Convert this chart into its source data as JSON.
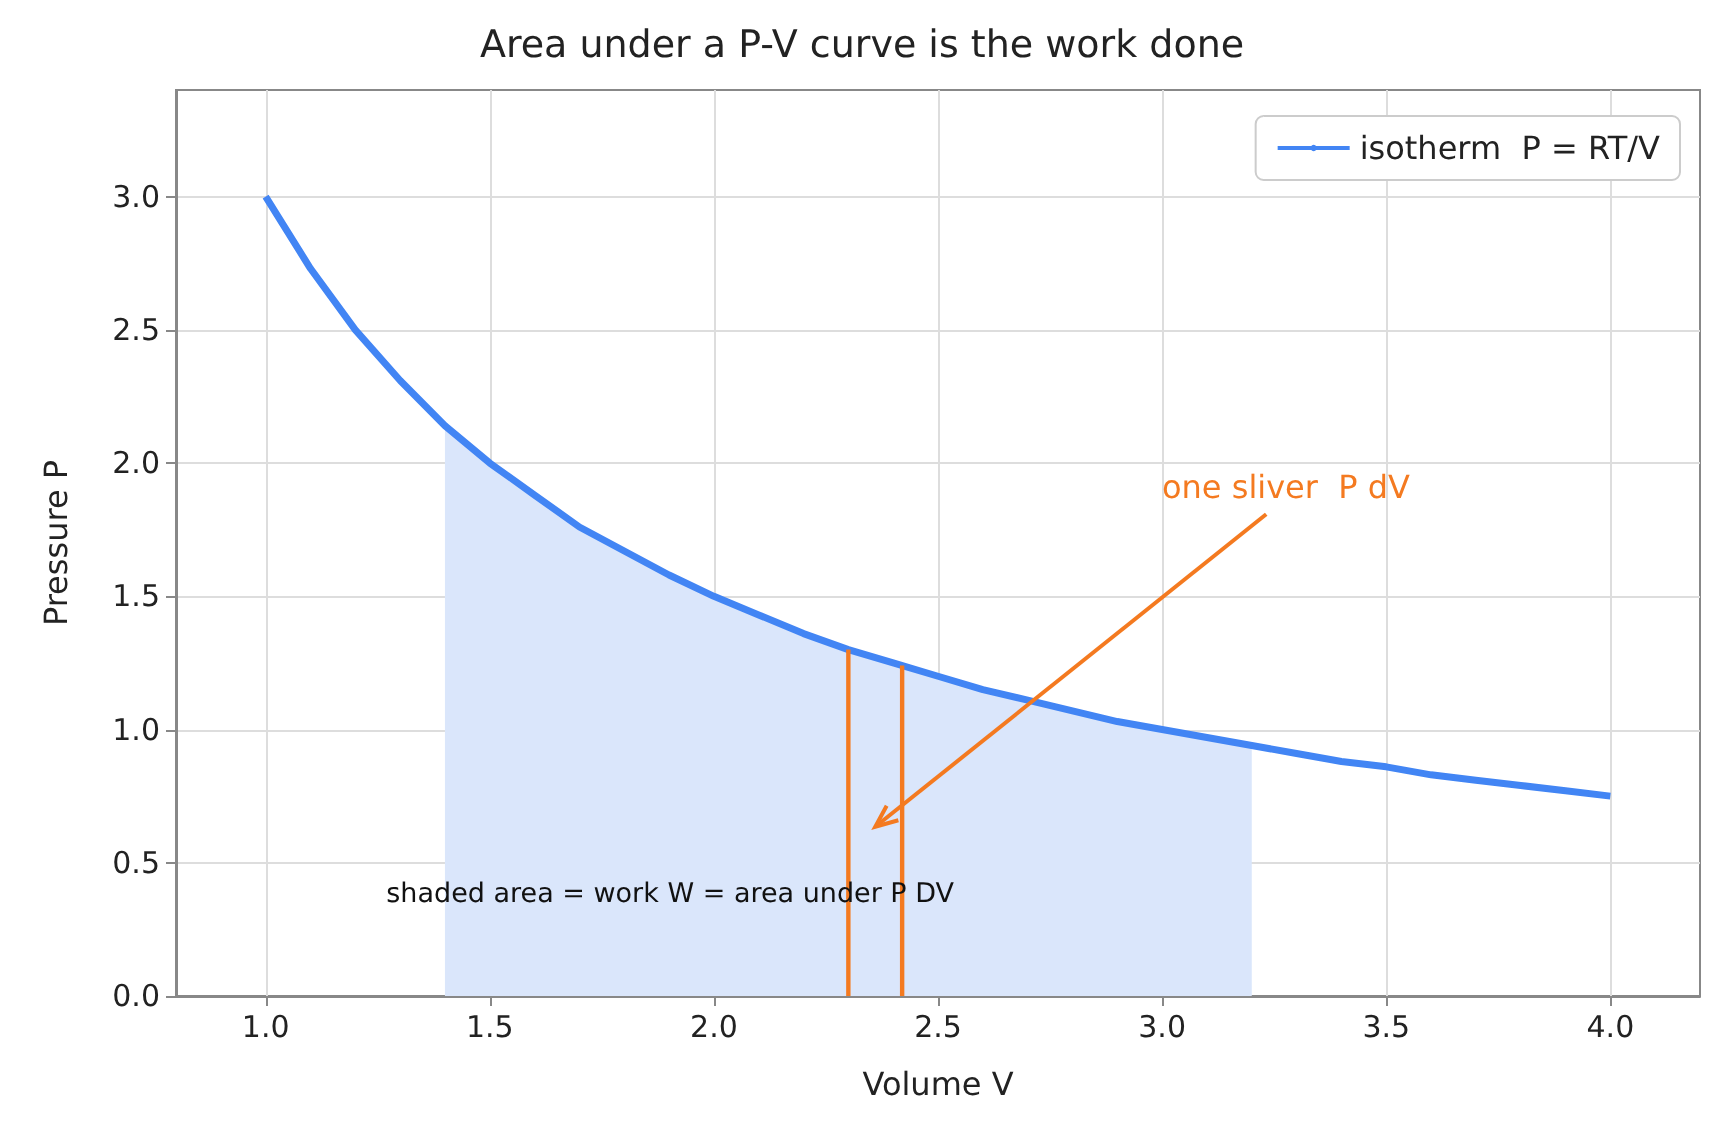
{
  "chart_data": {
    "type": "line",
    "title": "Area under a P-V curve is the work done",
    "xlabel": "Volume V",
    "ylabel": "Pressure P",
    "series": [
      {
        "name": "isotherm  P = RT/V",
        "color": "#4285f4",
        "x": [
          1,
          1.1,
          1.2,
          1.3,
          1.4,
          1.5,
          1.6,
          1.7,
          1.8,
          1.9,
          2,
          2.1,
          2.2,
          2.3,
          2.4,
          2.5,
          2.6,
          2.7,
          2.8,
          2.9,
          3,
          3.1,
          3.2,
          3.3,
          3.4,
          3.5,
          3.6,
          3.7,
          3.8,
          3.9,
          4
        ],
        "values": [
          3.0,
          2.73,
          2.5,
          2.31,
          2.14,
          2.0,
          1.88,
          1.76,
          1.67,
          1.58,
          1.5,
          1.43,
          1.36,
          1.3,
          1.25,
          1.2,
          1.15,
          1.11,
          1.07,
          1.03,
          1.0,
          0.97,
          0.94,
          0.91,
          0.88,
          0.86,
          0.83,
          0.81,
          0.79,
          0.77,
          0.75
        ]
      },
      {
        "type": "area",
        "color": "#dae6fb",
        "x": [
          1.4,
          1.5,
          1.6,
          1.7,
          1.8,
          1.9,
          2,
          2.1,
          2.2,
          2.3,
          2.4,
          2.5,
          2.6,
          2.7,
          2.8,
          2.9,
          3,
          3.1,
          3.2
        ],
        "values": [
          2.14,
          2.0,
          1.88,
          1.76,
          1.67,
          1.58,
          1.5,
          1.43,
          1.36,
          1.3,
          1.25,
          1.2,
          1.15,
          1.11,
          1.07,
          1.03,
          1.0,
          0.97,
          0.94
        ]
      },
      {
        "color": "#f47a20",
        "x": [
          2.3,
          2.3
        ],
        "values": [
          0,
          1.3
        ]
      },
      {
        "color": "#f47a20",
        "x": [
          2.42,
          2.42
        ],
        "values": [
          0,
          1.24
        ]
      }
    ],
    "annotations": [
      "one sliver  P dV",
      "shaded area = work W = area under P DV"
    ],
    "xlim": [
      0.8,
      4.2
    ],
    "ylim": [
      0,
      3.4
    ],
    "xticks": [
      {
        "value": 1,
        "label": "1.0"
      },
      {
        "value": 1.5,
        "label": "1.5"
      },
      {
        "value": 2,
        "label": "2.0"
      },
      {
        "value": 2.5,
        "label": "2.5"
      },
      {
        "value": 3,
        "label": "3.0"
      },
      {
        "value": 3.5,
        "label": "3.5"
      },
      {
        "value": 4,
        "label": "4.0"
      }
    ],
    "yticks": [
      {
        "value": 0,
        "label": "0.0"
      },
      {
        "value": 0.5,
        "label": "0.5"
      },
      {
        "value": 1,
        "label": "1.0"
      },
      {
        "value": 1.5,
        "label": "1.5"
      },
      {
        "value": 2,
        "label": "2.0"
      },
      {
        "value": 2.5,
        "label": "2.5"
      },
      {
        "value": 3,
        "label": "3.0"
      }
    ],
    "grid": true,
    "legend": "top right"
  }
}
